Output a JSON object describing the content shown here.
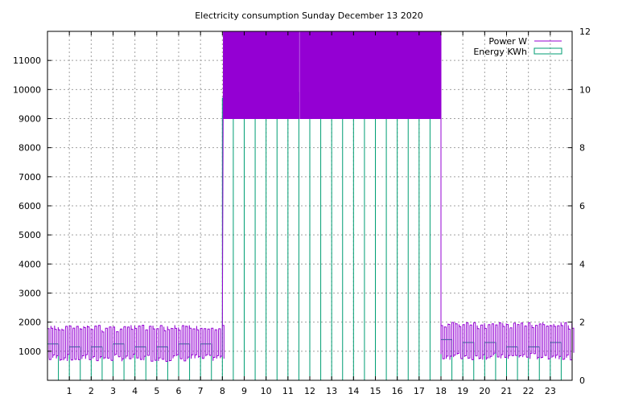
{
  "chart_data": {
    "type": "bar",
    "title": "Electricity consumption Sunday December 13 2020",
    "xlabel": "",
    "ylabel": "",
    "y2label": "",
    "xlim": [
      0,
      24
    ],
    "ylim": [
      0,
      12000
    ],
    "y2lim": [
      0,
      12
    ],
    "x_ticks": [
      1,
      2,
      3,
      4,
      5,
      6,
      7,
      8,
      9,
      10,
      11,
      12,
      13,
      14,
      15,
      16,
      17,
      18,
      19,
      20,
      21,
      22,
      23
    ],
    "y_ticks": [
      1000,
      2000,
      3000,
      4000,
      5000,
      6000,
      7000,
      8000,
      9000,
      10000,
      11000
    ],
    "y2_ticks": [
      0,
      2,
      4,
      6,
      8,
      10,
      12
    ],
    "grid": true,
    "legend_position": "top-right",
    "series": [
      {
        "name": "Power W",
        "color": "#9400d3",
        "axis": "left",
        "style": "line",
        "low_segments": [
          {
            "x": [
              0.0,
              8.0
            ],
            "low": 650,
            "high": 1900
          },
          {
            "x": [
              18.0,
              24.0
            ],
            "low": 700,
            "high": 2000
          }
        ],
        "high_segments": [
          {
            "x": [
              8.05,
              11.5
            ],
            "low": 9000,
            "high": 12000
          },
          {
            "x": [
              11.55,
              18.0
            ],
            "low": 9000,
            "high": 12000
          }
        ]
      },
      {
        "name": "Energy KWh",
        "color": "#009e73",
        "axis": "right",
        "style": "steps",
        "hours": [
          0,
          1,
          2,
          3,
          4,
          5,
          6,
          7,
          8,
          9,
          10,
          11,
          12,
          13,
          14,
          15,
          16,
          17,
          18,
          19,
          20,
          21,
          22,
          23
        ],
        "values": [
          1.25,
          1.15,
          1.15,
          1.25,
          1.15,
          1.15,
          1.25,
          1.25,
          9.7,
          9.8,
          9.9,
          9.9,
          10.1,
          10.0,
          10.0,
          10.0,
          10.1,
          10.1,
          1.4,
          1.3,
          1.3,
          1.15,
          1.15,
          1.3
        ]
      }
    ]
  }
}
